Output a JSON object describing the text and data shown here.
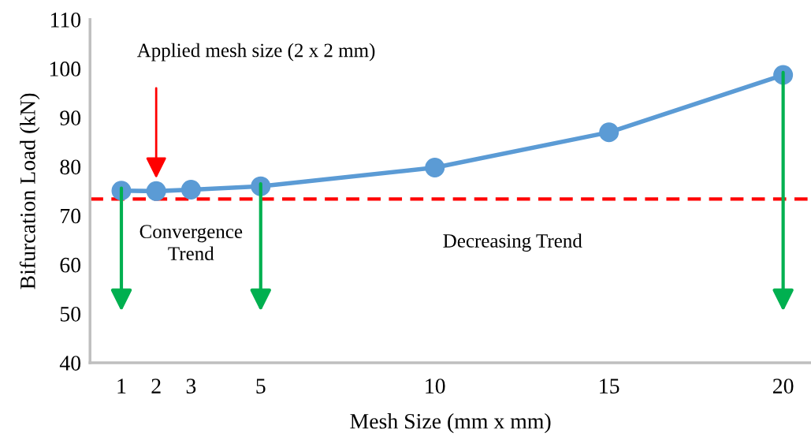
{
  "chart_data": {
    "type": "line",
    "xlabel": "Mesh Size (mm x mm)",
    "ylabel": "Bifurcation Load (kN)",
    "x": [
      1,
      2,
      3,
      5,
      10,
      15,
      20
    ],
    "series": [
      {
        "color": "#5b9bd5",
        "values": [
          75.1,
          75.0,
          75.3,
          76.0,
          79.8,
          87.0,
          98.7
        ]
      }
    ],
    "xlim": [
      0.1,
      20.8
    ],
    "xticks": [
      1,
      2,
      3,
      5,
      10,
      15,
      20
    ],
    "ylim": [
      40,
      110
    ],
    "yticks": [
      40,
      50,
      60,
      70,
      80,
      90,
      100,
      110
    ],
    "ref_lines": [
      {
        "axis": "y",
        "value": 73.4,
        "color": "#ff0000",
        "line_style": "dashed"
      }
    ],
    "annotations": [
      "Applied mesh size (2 x 2 mm)",
      "Convergence\nTrend",
      "Decreasing Trend"
    ],
    "grid": false,
    "marker": "circle",
    "line_style": "solid"
  }
}
